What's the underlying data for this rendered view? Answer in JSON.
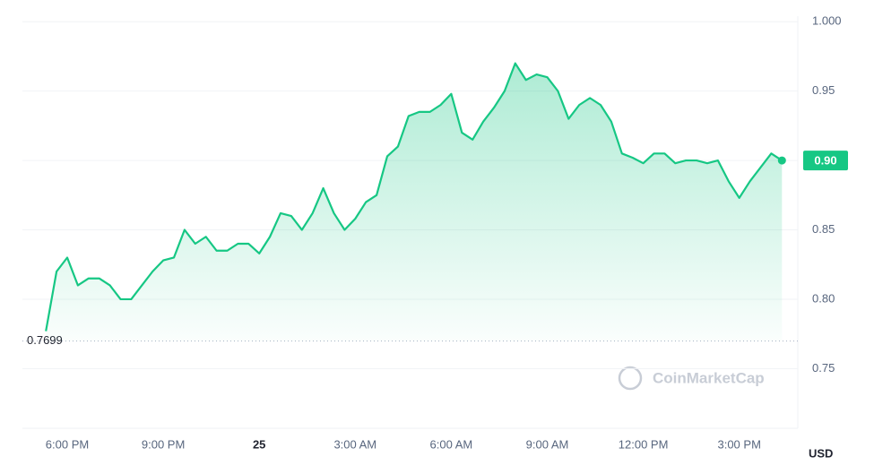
{
  "chart_data": {
    "type": "area",
    "categories": [
      null,
      null,
      "6:00 PM",
      null,
      null,
      null,
      null,
      null,
      null,
      null,
      null,
      "9:00 PM",
      null,
      null,
      null,
      null,
      null,
      null,
      null,
      null,
      "25",
      null,
      null,
      null,
      null,
      null,
      null,
      null,
      null,
      "3:00 AM",
      null,
      null,
      null,
      null,
      null,
      null,
      null,
      null,
      "6:00 AM",
      null,
      null,
      null,
      null,
      null,
      null,
      null,
      null,
      "9:00 AM",
      null,
      null,
      null,
      null,
      null,
      null,
      null,
      null,
      "12:00 PM",
      null,
      null,
      null,
      null,
      null,
      null,
      null,
      null,
      "3:00 PM",
      null,
      null,
      null,
      null
    ],
    "series": [
      {
        "color": "#16c784",
        "values": [
          0.777,
          0.82,
          0.83,
          0.81,
          0.815,
          0.815,
          0.81,
          0.8,
          0.8,
          0.81,
          0.82,
          0.828,
          0.83,
          0.85,
          0.84,
          0.845,
          0.835,
          0.835,
          0.84,
          0.84,
          0.833,
          0.845,
          0.862,
          0.86,
          0.85,
          0.862,
          0.88,
          0.862,
          0.85,
          0.858,
          0.87,
          0.875,
          0.903,
          0.91,
          0.932,
          0.935,
          0.935,
          0.94,
          0.948,
          0.92,
          0.915,
          0.928,
          0.938,
          0.95,
          0.97,
          0.958,
          0.962,
          0.96,
          0.95,
          0.93,
          0.94,
          0.945,
          0.94,
          0.928,
          0.905,
          0.902,
          0.898,
          0.905,
          0.905,
          0.898,
          0.9,
          0.9,
          0.898,
          0.9,
          0.885,
          0.873,
          0.885,
          0.895,
          0.905,
          0.9
        ]
      }
    ],
    "ylim": [
      0.707,
      1.004
    ],
    "yticks": [
      {
        "value": 0.75,
        "label": "0.75"
      },
      {
        "value": 0.8,
        "label": "0.80"
      },
      0.85,
      {
        "value": 0.9,
        "label": "0.90"
      },
      0.95,
      {
        "value": 1.0,
        "label": "1.000"
      }
    ],
    "grid": true,
    "reference": {
      "value": 0.7699,
      "label": "0.7699"
    },
    "current_price": {
      "value": 0.9,
      "label": "0.90"
    },
    "currency": "USD",
    "watermark": "CoinMarketCap"
  }
}
